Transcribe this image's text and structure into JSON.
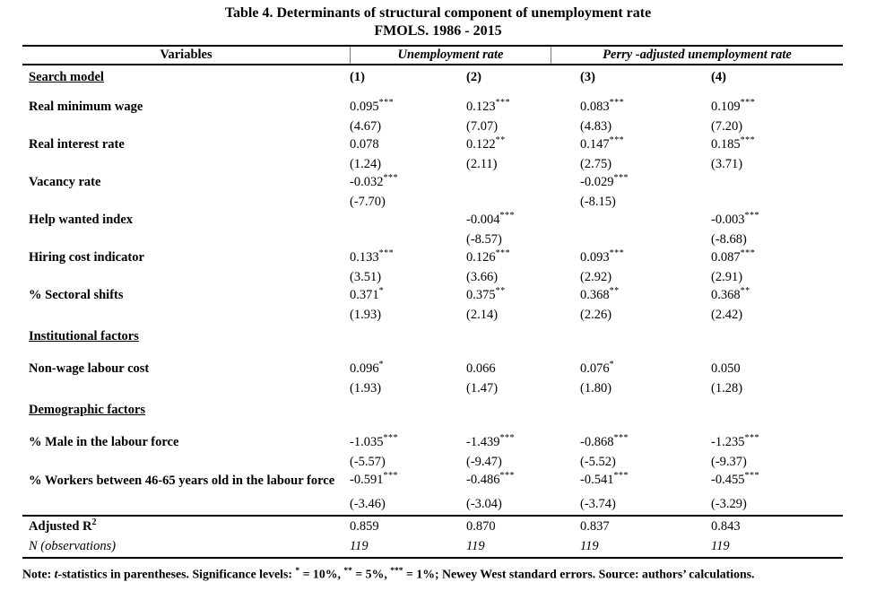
{
  "title": "Table 4. Determinants of structural component of unemployment rate",
  "subtitle": "FMOLS. 1986 - 2015",
  "header": {
    "variables_label": "Variables",
    "group1": "Unemployment rate",
    "group2": "Perry -adjusted unemployment rate",
    "model_row_label": "Search model",
    "columns": [
      "(1)",
      "(2)",
      "(3)",
      "(4)"
    ]
  },
  "rows": [
    {
      "type": "var",
      "label": "Real minimum wage",
      "coefs": [
        {
          "v": "0.095",
          "s": "***"
        },
        {
          "v": "0.123",
          "s": "***"
        },
        {
          "v": "0.083",
          "s": "***"
        },
        {
          "v": "0.109",
          "s": "***"
        }
      ],
      "tstats": [
        "(4.67)",
        "(7.07)",
        "(4.83)",
        "(7.20)"
      ]
    },
    {
      "type": "var",
      "label": "Real interest rate",
      "coefs": [
        {
          "v": "0.078",
          "s": ""
        },
        {
          "v": "0.122",
          "s": "**"
        },
        {
          "v": "0.147",
          "s": "***"
        },
        {
          "v": "0.185",
          "s": "***"
        }
      ],
      "tstats": [
        "(1.24)",
        "(2.11)",
        "(2.75)",
        "(3.71)"
      ]
    },
    {
      "type": "var",
      "label": "Vacancy rate",
      "coefs": [
        {
          "v": "-0.032",
          "s": "***"
        },
        {
          "v": "",
          "s": ""
        },
        {
          "v": "-0.029",
          "s": "***"
        },
        {
          "v": "",
          "s": ""
        }
      ],
      "tstats": [
        "(-7.70)",
        "",
        "(-8.15)",
        ""
      ]
    },
    {
      "type": "var",
      "label": "Help wanted index",
      "coefs": [
        {
          "v": "",
          "s": ""
        },
        {
          "v": "-0.004",
          "s": "***"
        },
        {
          "v": "",
          "s": ""
        },
        {
          "v": "-0.003",
          "s": "***"
        }
      ],
      "tstats": [
        "",
        "(-8.57)",
        "",
        "(-8.68)"
      ]
    },
    {
      "type": "var",
      "label": "Hiring cost indicator",
      "coefs": [
        {
          "v": "0.133",
          "s": "***"
        },
        {
          "v": "0.126",
          "s": "***"
        },
        {
          "v": "0.093",
          "s": "***"
        },
        {
          "v": "0.087",
          "s": "***"
        }
      ],
      "tstats": [
        "(3.51)",
        "(3.66)",
        "(2.92)",
        "(2.91)"
      ]
    },
    {
      "type": "var",
      "label": "% Sectoral shifts",
      "coefs": [
        {
          "v": "0.371",
          "s": "*"
        },
        {
          "v": "0.375",
          "s": "**"
        },
        {
          "v": "0.368",
          "s": "**"
        },
        {
          "v": "0.368",
          "s": "**"
        }
      ],
      "tstats": [
        "(1.93)",
        "(2.14)",
        "(2.26)",
        "(2.42)"
      ]
    },
    {
      "type": "section",
      "label": "Institutional factors"
    },
    {
      "type": "var",
      "label": "Non-wage labour cost",
      "coefs": [
        {
          "v": "0.096",
          "s": "*"
        },
        {
          "v": "0.066",
          "s": ""
        },
        {
          "v": "0.076",
          "s": "*"
        },
        {
          "v": "0.050",
          "s": ""
        }
      ],
      "tstats": [
        "(1.93)",
        "(1.47)",
        "(1.80)",
        "(1.28)"
      ]
    },
    {
      "type": "section",
      "label": "Demographic factors"
    },
    {
      "type": "var",
      "label": "% Male in the labour force",
      "coefs": [
        {
          "v": "-1.035",
          "s": "***"
        },
        {
          "v": "-1.439",
          "s": "***"
        },
        {
          "v": "-0.868",
          "s": "***"
        },
        {
          "v": "-1.235",
          "s": "***"
        }
      ],
      "tstats": [
        "(-5.57)",
        "(-9.47)",
        "(-5.52)",
        "(-9.37)"
      ]
    },
    {
      "type": "var",
      "tall": true,
      "label": "% Workers between 46-65 years old in the labour force",
      "coefs": [
        {
          "v": "-0.591",
          "s": "***"
        },
        {
          "v": "-0.486",
          "s": "***"
        },
        {
          "v": "-0.541",
          "s": "***"
        },
        {
          "v": "-0.455",
          "s": "***"
        }
      ],
      "tstats": [
        "(-3.46)",
        "(-3.04)",
        "(-3.74)",
        "(-3.29)"
      ]
    }
  ],
  "stats": [
    {
      "label": "Adjusted R",
      "label_sup": "2",
      "style": "bold",
      "values": [
        "0.859",
        "0.870",
        "0.837",
        "0.843"
      ]
    },
    {
      "label": "N (observations)",
      "label_sup": "",
      "style": "italic",
      "values": [
        "119",
        "119",
        "119",
        "119"
      ]
    }
  ],
  "note_segments": [
    {
      "t": "Note: "
    },
    {
      "t": "t",
      "i": true
    },
    {
      "t": "-statistics in parentheses. Significance levels: "
    },
    {
      "t": "*",
      "sup": true
    },
    {
      "t": " = 10%, "
    },
    {
      "t": "**",
      "sup": true
    },
    {
      "t": " = 5%, "
    },
    {
      "t": "***",
      "sup": true
    },
    {
      "t": " = 1%; Newey West standard errors. Source: authors’ calculations."
    }
  ]
}
